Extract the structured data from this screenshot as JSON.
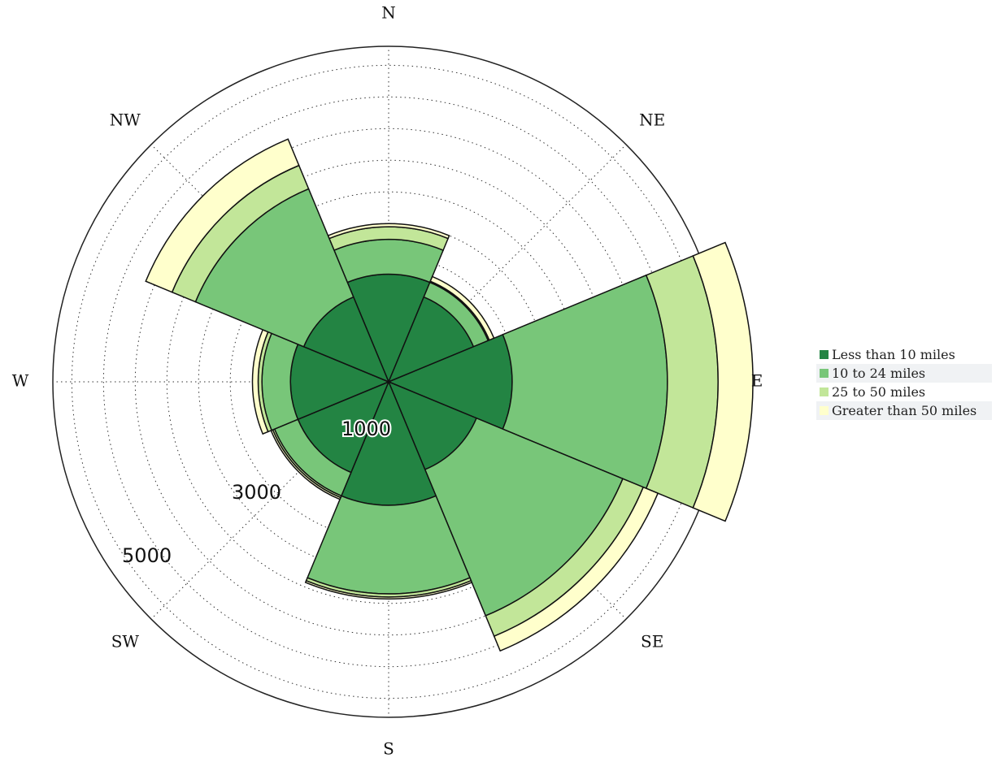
{
  "chart_data": {
    "type": "windrose",
    "directions": [
      "N",
      "NE",
      "E",
      "SE",
      "S",
      "SW",
      "W",
      "NW"
    ],
    "radial_ticks": [
      "1000",
      "3000",
      "5000"
    ],
    "rmax": 5300,
    "series": [
      {
        "name": "Less than 10 miles",
        "color": "#238443",
        "values": [
          1700,
          1450,
          1950,
          1500,
          1950,
          1550,
          1550,
          1450
        ]
      },
      {
        "name": "10 to 24 miles",
        "color": "#78c679",
        "values": [
          550,
          250,
          2450,
          2500,
          1400,
          400,
          450,
          1850
        ]
      },
      {
        "name": "25 to 50 miles",
        "color": "#c2e699",
        "values": [
          200,
          20,
          800,
          350,
          50,
          30,
          60,
          400
        ]
      },
      {
        "name": "Greater than 50 miles",
        "color": "#ffffcc",
        "values": [
          50,
          80,
          550,
          250,
          30,
          30,
          90,
          450
        ]
      }
    ]
  }
}
